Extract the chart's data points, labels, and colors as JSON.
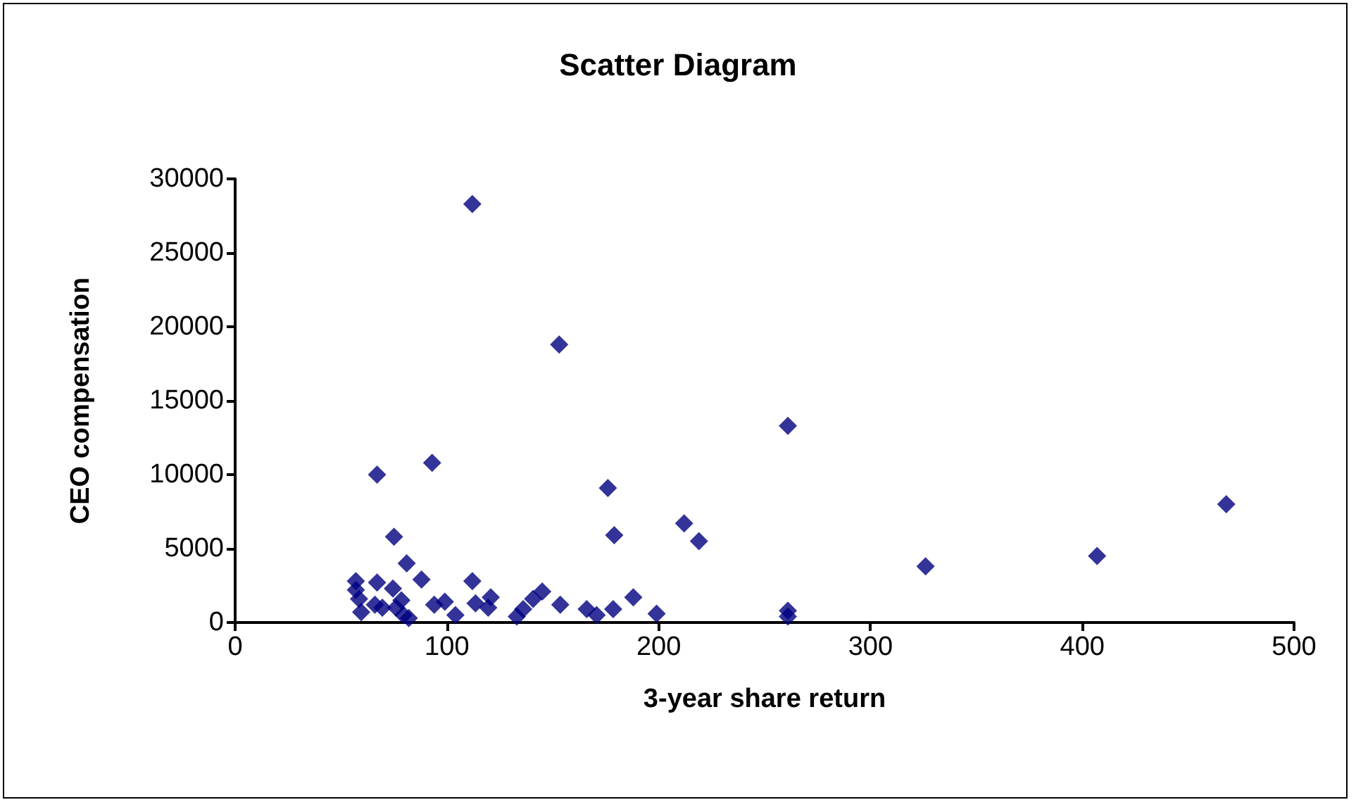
{
  "chart_data": {
    "type": "scatter",
    "title": "Scatter Diagram",
    "xlabel": "3-year share return",
    "ylabel": "CEO compensation",
    "xlim": [
      0,
      500
    ],
    "xticks": [
      0,
      100,
      200,
      300,
      400,
      500
    ],
    "ylim": [
      0,
      30000
    ],
    "yticks": [
      0,
      5000,
      10000,
      15000,
      20000,
      25000,
      30000
    ],
    "grid": false,
    "marker": "diamond",
    "series": [
      {
        "color": "#000080",
        "x": [
          112,
          153,
          261,
          67,
          93,
          176,
          468,
          212,
          219,
          179,
          75,
          81,
          326,
          407,
          88,
          57,
          57,
          67,
          74.5,
          58.5,
          59.5,
          66,
          69.5,
          78.5,
          76,
          79.5,
          82,
          94,
          99,
          104,
          112,
          113.5,
          120.7,
          119.5,
          133,
          136,
          140.7,
          145,
          153.5,
          166,
          170.7,
          178.5,
          188,
          199,
          261,
          261
        ],
        "values": [
          28300,
          18800,
          13300,
          10000,
          10800,
          9100,
          8000,
          6700,
          5500,
          5900,
          5800,
          4000,
          3800,
          4500,
          2900,
          2800,
          2200,
          2700,
          2300,
          1600,
          700,
          1200,
          1000,
          1500,
          1000,
          500,
          300,
          1200,
          1400,
          500,
          2800,
          1300,
          1700,
          1000,
          400,
          900,
          1600,
          2100,
          1200,
          900,
          500,
          900,
          1700,
          600,
          800,
          400
        ]
      }
    ]
  }
}
